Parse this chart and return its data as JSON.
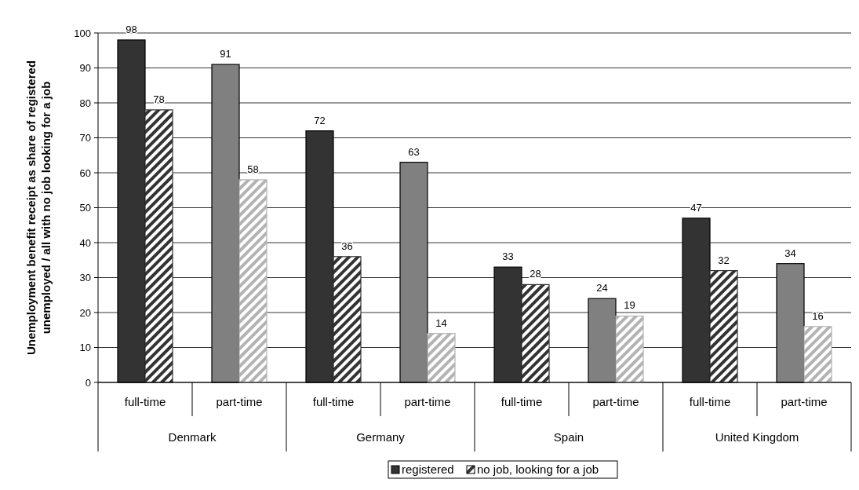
{
  "chart_data": {
    "type": "bar",
    "ylabel": "Unemployment benefit receipt as share of registered unemployed / all with no job looking for a job",
    "categories": [
      "full-time",
      "part-time",
      "full-time",
      "part-time",
      "full-time",
      "part-time",
      "full-time",
      "part-time"
    ],
    "annotations": [
      "Denmark",
      "Germany",
      "Spain",
      "United Kingdom"
    ],
    "series": [
      {
        "name": "registered",
        "color": "#333333",
        "colors": [
          "#333333",
          "#808080",
          "#333333",
          "#808080",
          "#333333",
          "#808080",
          "#333333",
          "#808080"
        ],
        "values": [
          98,
          91,
          72,
          63,
          33,
          24,
          47,
          34
        ]
      },
      {
        "name": "no job, looking for a job",
        "color": "#333333",
        "colors": [
          "#333333",
          "#b3b3b3",
          "#333333",
          "#b3b3b3",
          "#333333",
          "#b3b3b3",
          "#333333",
          "#b3b3b3"
        ],
        "values": [
          78,
          58,
          36,
          14,
          28,
          19,
          32,
          16
        ]
      }
    ],
    "ylim": [
      0,
      100
    ],
    "yticks": [
      0,
      10,
      20,
      30,
      40,
      50,
      60,
      70,
      80,
      90,
      100
    ],
    "grid": "y",
    "data_labels": true,
    "legend": "bottom"
  }
}
